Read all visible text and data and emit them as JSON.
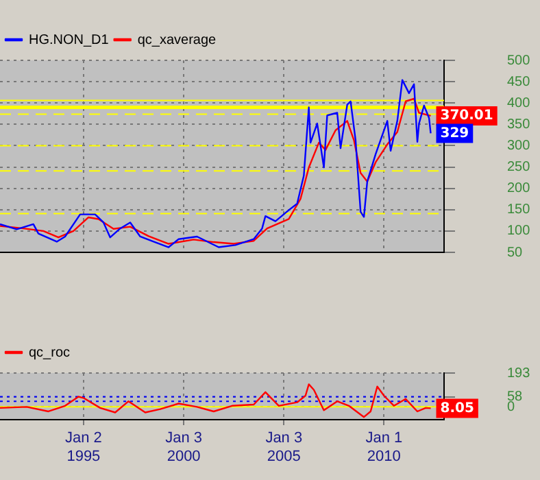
{
  "chart_data": [
    {
      "type": "line",
      "legend": "top left",
      "grid": true,
      "tick_labels": "y",
      "xlim": [
        "1990-11",
        "2013-01"
      ],
      "xticks": [
        {
          "value": "1995-01-02",
          "label": null
        },
        {
          "value": "2000-01-03",
          "label": null
        },
        {
          "value": "2005-01-03",
          "label": null
        },
        {
          "value": "2010-01-01",
          "label": null
        }
      ],
      "ylim": [
        50,
        500
      ],
      "yticks": [
        50,
        100,
        150,
        200,
        250,
        300,
        350,
        400,
        450,
        500
      ],
      "series": [
        {
          "name": "HG.NON_D1",
          "color": "#0000ff",
          "x": [
            "1990-11",
            "1991-09",
            "1992-07",
            "1992-10",
            "1993-09",
            "1994-02",
            "1994-11",
            "1995-08",
            "1996-01",
            "1996-05",
            "1996-11",
            "1997-05",
            "1997-11",
            "1998-07",
            "1999-04",
            "1999-10",
            "2000-09",
            "2001-10",
            "2002-08",
            "2003-07",
            "2003-12",
            "2004-02",
            "2004-08",
            "2005-04",
            "2005-09",
            "2006-01",
            "2006-04",
            "2006-05",
            "2006-09",
            "2007-01",
            "2007-03",
            "2007-09",
            "2007-11",
            "2008-03",
            "2008-05",
            "2008-08",
            "2008-11",
            "2009-01",
            "2009-03",
            "2009-08",
            "2010-03",
            "2010-05",
            "2010-09",
            "2010-12",
            "2011-04",
            "2011-07",
            "2011-09",
            "2011-10",
            "2012-01",
            "2012-04",
            "2012-05"
          ],
          "values": [
            116,
            104,
            116,
            94,
            75,
            87,
            139,
            139,
            120,
            85,
            106,
            120,
            87,
            75,
            62,
            81,
            87,
            62,
            67,
            81,
            106,
            135,
            123,
            149,
            164,
            230,
            390,
            307,
            352,
            249,
            371,
            377,
            294,
            396,
            404,
            313,
            145,
            133,
            216,
            280,
            358,
            288,
            358,
            454,
            423,
            444,
            309,
            352,
            394,
            365,
            329
          ]
        },
        {
          "name": "qc_xaverage",
          "color": "#ff0000",
          "x": [
            "1990-11",
            "1992-01",
            "1993-01",
            "1993-10",
            "1994-07",
            "1995-04",
            "1995-10",
            "1996-07",
            "1997-05",
            "1998-04",
            "1999-04",
            "2000-07",
            "2001-07",
            "2002-07",
            "2003-07",
            "2004-03",
            "2005-04",
            "2005-11",
            "2006-04",
            "2006-10",
            "2007-02",
            "2007-08",
            "2008-03",
            "2008-07",
            "2008-11",
            "2009-03",
            "2009-08",
            "2010-03",
            "2010-09",
            "2011-02",
            "2011-07",
            "2011-10",
            "2012-05"
          ],
          "values": [
            112,
            106,
            100,
            85,
            100,
            132,
            128,
            105,
            110,
            88,
            70,
            80,
            74,
            70,
            77,
            106,
            128,
            175,
            249,
            307,
            290,
            336,
            358,
            313,
            236,
            216,
            261,
            303,
            332,
            404,
            410,
            377,
            370
          ]
        }
      ],
      "ref_lines": [
        {
          "axis": "y",
          "value": 406,
          "color": "#ffff00",
          "line_style": "solid"
        },
        {
          "axis": "y",
          "value": 390,
          "color": "#ffff00",
          "line_style": "solid"
        },
        {
          "axis": "y",
          "value": 374,
          "color": "#ffff00",
          "line_style": "dashed"
        },
        {
          "axis": "y",
          "value": 300,
          "color": "#ffff00",
          "line_style": "dashed"
        },
        {
          "axis": "y",
          "value": 241,
          "color": "#ffff00",
          "line_style": "dashed"
        },
        {
          "axis": "y",
          "value": 141,
          "color": "#ffff00",
          "line_style": "dashed"
        }
      ],
      "annotations": [
        {
          "text": "370.01",
          "x": "2012-05",
          "y": 370.01
        },
        {
          "text": "329",
          "x": "2012-05",
          "y": 329
        }
      ]
    },
    {
      "type": "line",
      "legend": "top left",
      "grid": true,
      "xlim": [
        "1990-11",
        "2013-01"
      ],
      "xticks": [
        {
          "value": "1995-01-02",
          "label": "Jan 2\n1995"
        },
        {
          "value": "2000-01-03",
          "label": "Jan 3\n2000"
        },
        {
          "value": "2005-01-03",
          "label": "Jan 3\n2005"
        },
        {
          "value": "2010-01-01",
          "label": "Jan 1\n2010"
        }
      ],
      "ylim": [
        -73,
        193
      ],
      "yticks": [
        0,
        58,
        193
      ],
      "series": [
        {
          "name": "qc_roc",
          "color": "#ff0000",
          "x": [
            "1990-11",
            "1992-03",
            "1993-04",
            "1994-02",
            "1994-10",
            "1995-01",
            "1995-11",
            "1996-08",
            "1997-04",
            "1998-02",
            "1998-11",
            "1999-10",
            "2000-09",
            "2001-07",
            "2002-06",
            "2003-07",
            "2004-02",
            "2004-10",
            "2005-09",
            "2006-02",
            "2006-04",
            "2006-07",
            "2007-01",
            "2007-09",
            "2008-04",
            "2009-01",
            "2009-05",
            "2009-09",
            "2010-01",
            "2010-07",
            "2011-02",
            "2011-09",
            "2012-02",
            "2012-05"
          ],
          "values": [
            -6,
            0,
            -26,
            6,
            58,
            51,
            -6,
            -32,
            32,
            -32,
            -13,
            19,
            0,
            -26,
            6,
            13,
            84,
            6,
            26,
            64,
            129,
            97,
            -19,
            32,
            6,
            -58,
            -26,
            116,
            64,
            6,
            45,
            -26,
            -6,
            -8
          ]
        }
      ],
      "ref_lines": [
        {
          "axis": "y",
          "value": 58,
          "color": "#0000ff",
          "line_style": "dotted"
        },
        {
          "axis": "y",
          "value": 32,
          "color": "#0000ff",
          "line_style": "dotted"
        },
        {
          "axis": "y",
          "value": 0,
          "color": "#ffff00",
          "line_style": "solid"
        }
      ],
      "annotations": [
        {
          "text": "8.05",
          "x": "2012-05",
          "y": -8.05
        }
      ]
    }
  ]
}
